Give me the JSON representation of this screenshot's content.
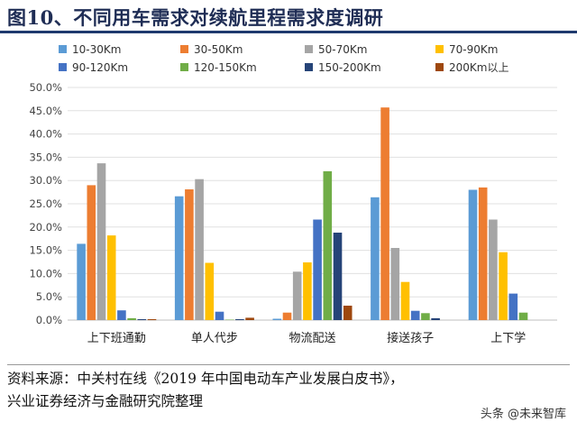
{
  "figure": {
    "title": "图10、不同用车需求对续航里程需求度调研",
    "source_line1": "资料来源：中关村在线《2019 年中国电动车产业发展白皮书》，",
    "source_line2": "兴业证券经济与金融研究院整理",
    "watermark": "头条 @未来智库"
  },
  "chart_data": {
    "type": "bar",
    "title": "",
    "xlabel": "",
    "ylabel": "",
    "ylim": [
      0,
      50
    ],
    "y_ticks": [
      "0.0%",
      "5.0%",
      "10.0%",
      "15.0%",
      "20.0%",
      "25.0%",
      "30.0%",
      "35.0%",
      "40.0%",
      "45.0%",
      "50.0%"
    ],
    "grid": true,
    "legend_position": "top",
    "categories": [
      "上下班通勤",
      "单人代步",
      "物流配送",
      "接送孩子",
      "上下学"
    ],
    "series": [
      {
        "name": "10-30Km",
        "color": "#5b9bd5",
        "values": [
          16.4,
          26.6,
          0.3,
          26.4,
          28.0
        ]
      },
      {
        "name": "30-50Km",
        "color": "#ed7d31",
        "values": [
          29.0,
          28.1,
          1.6,
          45.7,
          28.5
        ]
      },
      {
        "name": "50-70Km",
        "color": "#a5a5a5",
        "values": [
          33.7,
          30.3,
          10.4,
          15.5,
          21.6
        ]
      },
      {
        "name": "70-90Km",
        "color": "#ffc000",
        "values": [
          18.2,
          12.3,
          12.4,
          8.2,
          14.6
        ]
      },
      {
        "name": "90-120Km",
        "color": "#4472c4",
        "values": [
          2.1,
          1.8,
          21.6,
          2.0,
          5.7
        ]
      },
      {
        "name": "120-150Km",
        "color": "#70ad47",
        "values": [
          0.4,
          0.1,
          32.0,
          1.5,
          1.6
        ]
      },
      {
        "name": "150-200Km",
        "color": "#264478",
        "values": [
          0.2,
          0.2,
          18.8,
          0.4,
          0.0
        ]
      },
      {
        "name": "200Km以上",
        "color": "#9e480e",
        "values": [
          0.2,
          0.5,
          3.1,
          0.0,
          0.0
        ]
      }
    ]
  }
}
